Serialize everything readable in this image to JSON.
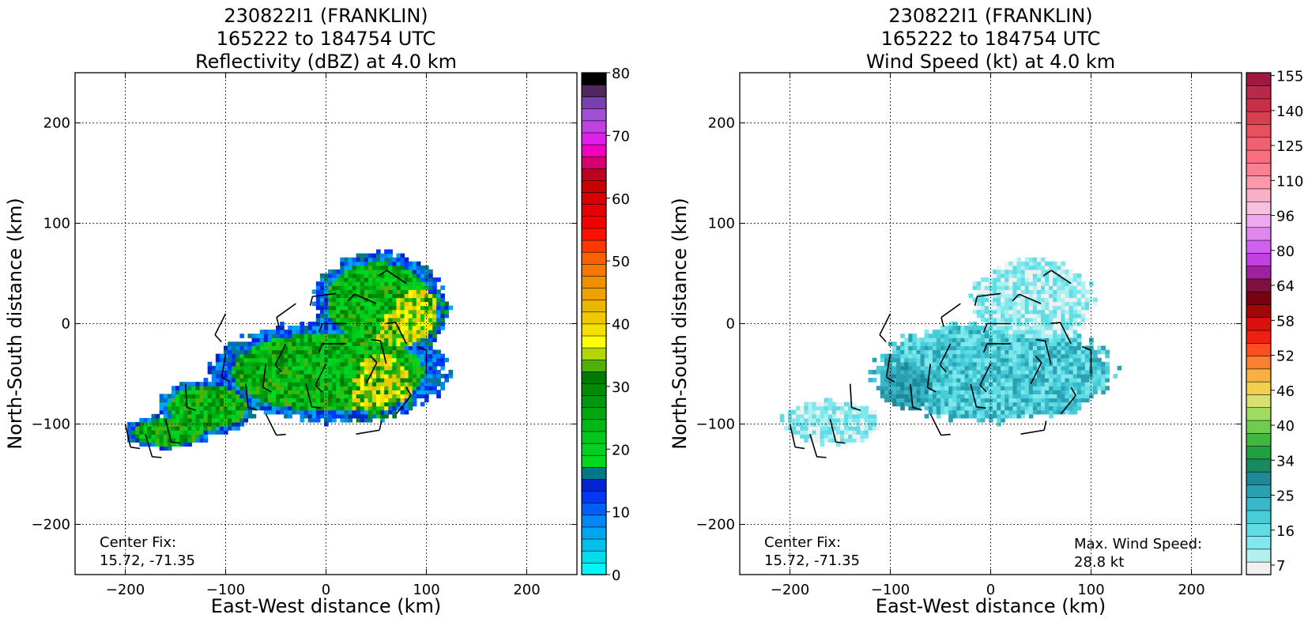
{
  "chart_data": [
    {
      "type": "heatmap",
      "title_lines": [
        "230822I1 (FRANKLIN)",
        "165222 to 184754 UTC",
        "Reflectivity (dBZ) at 4.0 km"
      ],
      "xlabel": "East-West distance (km)",
      "ylabel": "North-South distance (km)",
      "xlim": [
        -250,
        250
      ],
      "ylim": [
        -250,
        250
      ],
      "xticks": [
        -200,
        -100,
        0,
        100,
        200
      ],
      "yticks": [
        -200,
        -100,
        0,
        100,
        200
      ],
      "grid": true,
      "center_fix_label": "Center Fix:",
      "center_fix_value": "15.72, -71.35",
      "colorbar": {
        "min": 0,
        "max": 80,
        "tick_labels": [
          "0",
          "10",
          "20",
          "30",
          "40",
          "50",
          "60",
          "70",
          "80"
        ],
        "colors": [
          "#00f5f5",
          "#00dde8",
          "#00c0ee",
          "#00a5f0",
          "#0088f5",
          "#0060f5",
          "#0038f5",
          "#0025d0",
          "#007888",
          "#00d820",
          "#00d020",
          "#00c818",
          "#00b815",
          "#00a810",
          "#009810",
          "#008a08",
          "#007a05",
          "#50b008",
          "#b0d800",
          "#ffff00",
          "#f5e000",
          "#f0c800",
          "#e8b800",
          "#f0a000",
          "#f09000",
          "#f57800",
          "#ff6000",
          "#ff3800",
          "#ff1000",
          "#f50000",
          "#e80000",
          "#d80000",
          "#c80000",
          "#c00020",
          "#d80070",
          "#f000c0",
          "#e020e8",
          "#c040e0",
          "#a050d8",
          "#7840b0",
          "#502860",
          "#000000"
        ]
      },
      "echo_regions": [
        {
          "cx": 50,
          "cy": 20,
          "rx": 60,
          "ry": 45,
          "level": "green"
        },
        {
          "cx": 70,
          "cy": 10,
          "rx": 45,
          "ry": 40,
          "level": "yellow"
        },
        {
          "cx": 0,
          "cy": -50,
          "rx": 110,
          "ry": 45,
          "level": "green"
        },
        {
          "cx": 40,
          "cy": -55,
          "rx": 55,
          "ry": 40,
          "level": "yellow"
        },
        {
          "cx": -120,
          "cy": -85,
          "rx": 45,
          "ry": 25,
          "level": "green"
        },
        {
          "cx": -160,
          "cy": -110,
          "rx": 40,
          "ry": 15,
          "level": "green"
        }
      ]
    },
    {
      "type": "heatmap",
      "title_lines": [
        "230822I1 (FRANKLIN)",
        "165222 to 184754 UTC",
        "Wind Speed (kt) at 4.0 km"
      ],
      "xlabel": "East-West distance (km)",
      "ylabel": "North-South distance (km)",
      "xlim": [
        -250,
        250
      ],
      "ylim": [
        -250,
        250
      ],
      "xticks": [
        -200,
        -100,
        0,
        100,
        200
      ],
      "yticks": [
        -200,
        -100,
        0,
        100,
        200
      ],
      "grid": true,
      "center_fix_label": "Center Fix:",
      "center_fix_value": "15.72, -71.35",
      "max_wind_label": "Max. Wind Speed:",
      "max_wind_value": "28.8 kt",
      "colorbar": {
        "tick_labels": [
          "7",
          "16",
          "25",
          "34",
          "40",
          "46",
          "52",
          "58",
          "64",
          "80",
          "96",
          "110",
          "125",
          "140",
          "155"
        ],
        "colors": [
          "#f0f0f0",
          "#b0f0f0",
          "#80e8ec",
          "#60dce4",
          "#48ccd8",
          "#38b8c8",
          "#2aa0b0",
          "#208898",
          "#188a60",
          "#20a040",
          "#40b840",
          "#70cc50",
          "#a0dc60",
          "#d8e070",
          "#f0d050",
          "#f8b040",
          "#f88030",
          "#f85020",
          "#f02010",
          "#d81010",
          "#a00808",
          "#780010",
          "#801040",
          "#a020a0",
          "#c040e0",
          "#d060f0",
          "#e088f0",
          "#f0a8f0",
          "#f8c0e0",
          "#f8b0c8",
          "#f898a8",
          "#f88090",
          "#f87080",
          "#f06070",
          "#e85060",
          "#d84050",
          "#c83048",
          "#b82848",
          "#a01840"
        ]
      },
      "speed_regions": [
        {
          "cx": 40,
          "cy": 20,
          "rx": 55,
          "ry": 40,
          "level": "light"
        },
        {
          "cx": 0,
          "cy": -50,
          "rx": 110,
          "ry": 45,
          "level": "mid"
        },
        {
          "cx": -80,
          "cy": -60,
          "rx": 30,
          "ry": 25,
          "level": "dark"
        },
        {
          "cx": 60,
          "cy": -55,
          "rx": 45,
          "ry": 35,
          "level": "mid"
        },
        {
          "cx": -160,
          "cy": -100,
          "rx": 45,
          "ry": 20,
          "level": "light"
        }
      ],
      "wind_barbs": [
        {
          "x": -200,
          "y": -100
        },
        {
          "x": -180,
          "y": -110
        },
        {
          "x": -160,
          "y": -95
        },
        {
          "x": -140,
          "y": -60
        },
        {
          "x": -100,
          "y": -30
        },
        {
          "x": -80,
          "y": -60
        },
        {
          "x": -60,
          "y": -40
        },
        {
          "x": -40,
          "y": -20
        },
        {
          "x": -20,
          "y": -60
        },
        {
          "x": 0,
          "y": -40
        },
        {
          "x": 20,
          "y": -20
        },
        {
          "x": 40,
          "y": -60
        },
        {
          "x": 60,
          "y": -40
        },
        {
          "x": 80,
          "y": -20
        },
        {
          "x": 100,
          "y": -50
        },
        {
          "x": -30,
          "y": 20
        },
        {
          "x": 10,
          "y": 30
        },
        {
          "x": 50,
          "y": 20
        },
        {
          "x": 80,
          "y": 40
        },
        {
          "x": 70,
          "y": -90
        },
        {
          "x": 30,
          "y": -110
        },
        {
          "x": -100,
          "y": 10
        },
        {
          "x": 20,
          "y": 0
        },
        {
          "x": -60,
          "y": -90
        }
      ]
    }
  ]
}
